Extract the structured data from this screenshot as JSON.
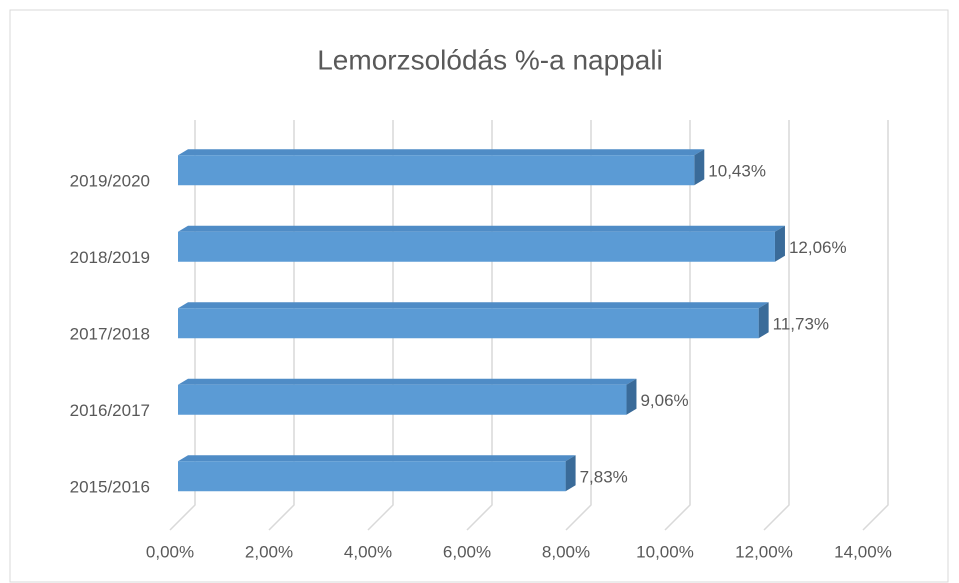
{
  "chart_data": {
    "type": "bar",
    "orientation": "horizontal",
    "title": "Lemorzsolódás %-a nappali",
    "categories": [
      "2019/2020",
      "2018/2019",
      "2017/2018",
      "2016/2017",
      "2015/2016"
    ],
    "values": [
      10.43,
      12.06,
      11.73,
      9.06,
      7.83
    ],
    "value_labels": [
      "10,43%",
      "12,06%",
      "11,73%",
      "9,06%",
      "7,83%"
    ],
    "color": "#5b9bd5",
    "xlim": [
      0,
      14
    ],
    "xticks": [
      {
        "value": 0,
        "label": "0,00%"
      },
      {
        "value": 2,
        "label": "2,00%"
      },
      {
        "value": 4,
        "label": "4,00%"
      },
      {
        "value": 6,
        "label": "6,00%"
      },
      {
        "value": 8,
        "label": "8,00%"
      },
      {
        "value": 10,
        "label": "10,00%"
      },
      {
        "value": 12,
        "label": "12,00%"
      },
      {
        "value": 14,
        "label": "14,00%"
      }
    ],
    "grid": true
  }
}
